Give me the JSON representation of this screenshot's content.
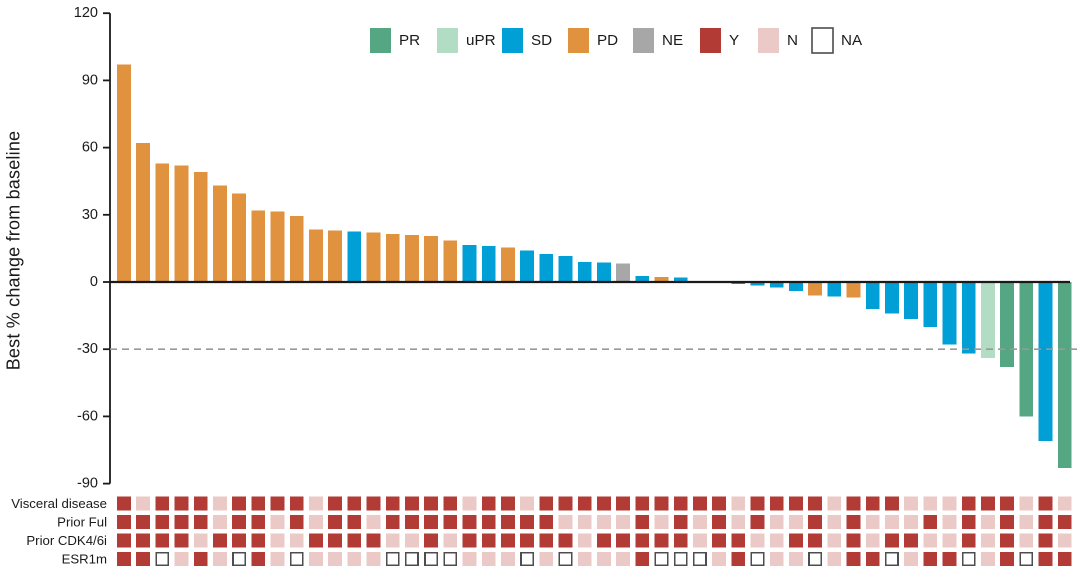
{
  "chart_data": {
    "type": "bar",
    "subtype": "waterfall-tumor-response",
    "title": "",
    "ylabel": "Best % change from baseline",
    "xlabel": "",
    "ylim": [
      -90,
      120
    ],
    "yticks": [
      120,
      90,
      60,
      30,
      0,
      -30,
      -60,
      -90
    ],
    "grid": "off",
    "legend_position": "top",
    "reference_lines": [
      {
        "y": 0,
        "style": "solid",
        "color": "#1a1a1a"
      },
      {
        "y": -30,
        "style": "dashed",
        "color": "#999999"
      }
    ],
    "colors": {
      "PR": "#55A783",
      "uPR": "#B2DCC4",
      "SD": "#009FD6",
      "PD": "#E0923F",
      "NE": "#A7A7A7",
      "Y": "#B23B35",
      "N": "#EBC9C6",
      "NA": "#FFFFFF"
    },
    "na_border_color": "#4D4D4D",
    "axis_color": "#1a1a1a",
    "dashed_line_color": "#999999",
    "legend": [
      {
        "label": "PR",
        "color_key": "PR"
      },
      {
        "label": "uPR",
        "color_key": "uPR"
      },
      {
        "label": "SD",
        "color_key": "SD"
      },
      {
        "label": "PD",
        "color_key": "PD"
      },
      {
        "label": "NE",
        "color_key": "NE"
      },
      {
        "label": "Y",
        "color_key": "Y"
      },
      {
        "label": "N",
        "color_key": "N"
      },
      {
        "label": "NA",
        "color_key": "NA"
      }
    ],
    "values": [
      97,
      62,
      53,
      52,
      49,
      43,
      39.5,
      32,
      31.5,
      29.5,
      23.5,
      23,
      22.5,
      22,
      21.5,
      21,
      20.5,
      18.5,
      16.5,
      16,
      15.5,
      14,
      12.5,
      11.5,
      9,
      8.7,
      8.2,
      2.7,
      2.3,
      2,
      0,
      0,
      -1,
      -1.5,
      -2.5,
      -4,
      -6,
      -6.5,
      -7,
      -12,
      -14,
      -16.5,
      -20,
      -28,
      -32,
      -34,
      -38,
      -60,
      -71,
      -83
    ],
    "responses": [
      "PD",
      "PD",
      "PD",
      "PD",
      "PD",
      "PD",
      "PD",
      "PD",
      "PD",
      "PD",
      "PD",
      "PD",
      "SD",
      "PD",
      "PD",
      "PD",
      "PD",
      "PD",
      "SD",
      "SD",
      "PD",
      "SD",
      "SD",
      "SD",
      "SD",
      "SD",
      "NE",
      "SD",
      "PD",
      "SD",
      "SD",
      "SD",
      "SD",
      "SD",
      "SD",
      "SD",
      "PD",
      "SD",
      "PD",
      "SD",
      "SD",
      "SD",
      "SD",
      "SD",
      "SD",
      "uPR",
      "PR",
      "PR",
      "SD",
      "PR"
    ],
    "annotation_rows": [
      {
        "label": "Visceral disease",
        "values": [
          "Y",
          "N",
          "Y",
          "Y",
          "Y",
          "N",
          "Y",
          "Y",
          "Y",
          "Y",
          "N",
          "Y",
          "Y",
          "Y",
          "Y",
          "Y",
          "Y",
          "Y",
          "N",
          "Y",
          "Y",
          "N",
          "Y",
          "Y",
          "Y",
          "Y",
          "Y",
          "Y",
          "Y",
          "Y",
          "Y",
          "Y",
          "N",
          "Y",
          "Y",
          "Y",
          "Y",
          "N",
          "Y",
          "Y",
          "Y",
          "N",
          "N",
          "N",
          "Y",
          "Y",
          "Y",
          "N",
          "Y",
          "N"
        ]
      },
      {
        "label": "Prior Ful",
        "values": [
          "Y",
          "Y",
          "Y",
          "Y",
          "Y",
          "N",
          "Y",
          "Y",
          "N",
          "Y",
          "N",
          "Y",
          "Y",
          "N",
          "Y",
          "Y",
          "Y",
          "Y",
          "Y",
          "Y",
          "Y",
          "Y",
          "Y",
          "N",
          "N",
          "N",
          "N",
          "Y",
          "N",
          "Y",
          "N",
          "Y",
          "N",
          "Y",
          "N",
          "N",
          "Y",
          "N",
          "Y",
          "N",
          "N",
          "N",
          "Y",
          "N",
          "Y",
          "N",
          "Y",
          "N",
          "Y",
          "Y"
        ]
      },
      {
        "label": "Prior CDK4/6i",
        "values": [
          "Y",
          "Y",
          "Y",
          "Y",
          "N",
          "Y",
          "Y",
          "Y",
          "N",
          "N",
          "Y",
          "Y",
          "Y",
          "Y",
          "N",
          "N",
          "Y",
          "N",
          "Y",
          "Y",
          "Y",
          "Y",
          "Y",
          "Y",
          "N",
          "Y",
          "Y",
          "Y",
          "Y",
          "Y",
          "N",
          "Y",
          "Y",
          "N",
          "N",
          "Y",
          "Y",
          "N",
          "Y",
          "N",
          "Y",
          "Y",
          "N",
          "N",
          "Y",
          "N",
          "Y",
          "N",
          "Y",
          "N"
        ]
      },
      {
        "label": "ESR1m",
        "values": [
          "Y",
          "Y",
          "NA",
          "N",
          "Y",
          "N",
          "NA",
          "Y",
          "N",
          "NA",
          "N",
          "N",
          "N",
          "N",
          "NA",
          "NA",
          "NA",
          "NA",
          "N",
          "N",
          "N",
          "NA",
          "N",
          "NA",
          "N",
          "N",
          "N",
          "Y",
          "NA",
          "NA",
          "NA",
          "N",
          "Y",
          "NA",
          "N",
          "N",
          "NA",
          "N",
          "Y",
          "Y",
          "NA",
          "N",
          "Y",
          "Y",
          "NA",
          "N",
          "Y",
          "NA",
          "Y",
          "Y"
        ]
      }
    ]
  }
}
